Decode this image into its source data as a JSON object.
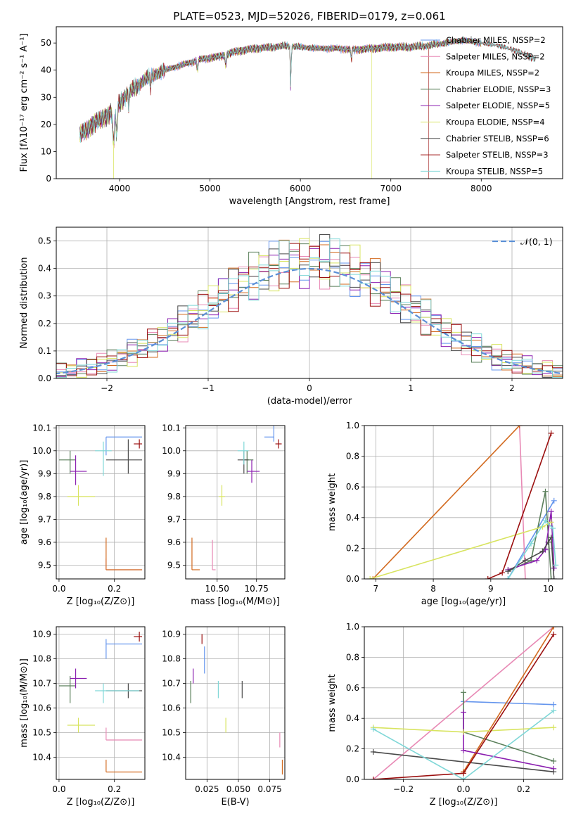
{
  "colors": [
    "#6495ed",
    "#e889b5",
    "#d2691e",
    "#5a7f5a",
    "#8b1fb0",
    "#d8e460",
    "#4a4a4a",
    "#9b0f0f",
    "#7fd7d7"
  ],
  "chart_data": [
    {
      "id": "spectrum",
      "type": "line",
      "title": "PLATE=0523, MJD=52026, FIBERID=0179, z=0.061",
      "xlabel": "wavelength [Angstrom, rest frame]",
      "ylabel": "Flux [fλ10⁻¹⁷ erg cm⁻² s⁻¹ A⁻¹]",
      "xlim": [
        3300,
        8900
      ],
      "ylim": [
        0,
        56
      ],
      "xticks": [
        4000,
        5000,
        6000,
        7000,
        8000
      ],
      "yticks": [
        0,
        10,
        20,
        30,
        40,
        50
      ],
      "legend": [
        "Chabrier MILES, NSSP=2",
        "Salpeter MILES, NSSP=2",
        "Kroupa MILES, NSSP=2",
        "Chabrier ELODIE, NSSP=3",
        "Salpeter ELODIE, NSSP=5",
        "Kroupa ELODIE, NSSP=4",
        "Chabrier STELIB, NSSP=6",
        "Salpeter STELIB, NSSP=3",
        "Kroupa STELIB, NSSP=5"
      ],
      "legend_position": "right",
      "continuum": {
        "x": [
          3560,
          3700,
          3850,
          3950,
          4050,
          4150,
          4300,
          4500,
          4700,
          4900,
          5100,
          5300,
          5500,
          5700,
          5850,
          6000,
          6200,
          6400,
          6600,
          6800,
          7000,
          7200,
          7400,
          7600,
          7800,
          8000,
          8200,
          8400,
          8600
        ],
        "y": [
          16,
          20,
          23,
          26,
          30,
          33,
          37,
          40,
          42,
          44,
          45,
          47,
          48,
          48.5,
          49,
          48.5,
          48,
          48,
          47.5,
          48,
          48.5,
          48.5,
          49,
          50,
          51,
          50,
          49,
          47,
          44
        ]
      },
      "end_x": [
        8000,
        8000,
        8000,
        8000,
        8000,
        8000,
        8600,
        8600,
        8600
      ],
      "drop_x": [
        null,
        null,
        null,
        null,
        null,
        6790,
        null,
        7420,
        null
      ]
    },
    {
      "id": "residuals",
      "type": "histogram",
      "xlabel": "(data-model)/error",
      "ylabel": "Normed distribution",
      "xlim": [
        -2.5,
        2.5
      ],
      "ylim": [
        0,
        0.55
      ],
      "xticks": [
        -2,
        -1,
        0,
        1,
        2
      ],
      "yticks": [
        0.0,
        0.1,
        0.2,
        0.3,
        0.4,
        0.5
      ],
      "legend": [
        "𝒩(0, 1)"
      ],
      "legend_position": "upper right",
      "bin_width": 0.1,
      "reference": {
        "type": "gaussian",
        "mean": 0,
        "sigma": 1
      }
    },
    {
      "id": "age-vs-z",
      "type": "scatter",
      "xlabel": "Z [log₁₀(Z/Z⊙)]",
      "ylabel": "age  [log₁₀(age/yr)]",
      "xlim": [
        -0.01,
        0.31
      ],
      "ylim": [
        9.44,
        10.11
      ],
      "xticks": [
        0.0,
        0.2
      ],
      "yticks": [
        9.5,
        9.6,
        9.7,
        9.8,
        9.9,
        10.0,
        10.1
      ],
      "points": [
        {
          "x": 0.17,
          "xerr": [
            0,
            0.13
          ],
          "y": 10.06,
          "yerr": [
            0.08,
            0.0
          ]
        },
        {
          "x": 0.17,
          "xerr": [
            0,
            0.13
          ],
          "y": 9.48,
          "yerr": [
            0.0,
            0.05
          ]
        },
        {
          "x": 0.17,
          "xerr": [
            0,
            0.13
          ],
          "y": 9.48,
          "yerr": [
            0.0,
            0.14
          ]
        },
        {
          "x": 0.04,
          "xerr": [
            0.04,
            0.02
          ],
          "y": 9.96,
          "yerr": [
            0.06,
            0.04
          ]
        },
        {
          "x": 0.06,
          "xerr": [
            0.02,
            0.04
          ],
          "y": 9.91,
          "yerr": [
            0.06,
            0.07
          ]
        },
        {
          "x": 0.07,
          "xerr": [
            0.04,
            0.06
          ],
          "y": 9.8,
          "yerr": [
            0.04,
            0.05
          ]
        },
        {
          "x": 0.25,
          "xerr": [
            0.08,
            0.05
          ],
          "y": 9.96,
          "yerr": [
            0.06,
            0.09
          ]
        },
        {
          "x": 0.29,
          "xerr": [
            0.02,
            0.01
          ],
          "y": 10.03,
          "yerr": [
            0.02,
            0.02
          ]
        },
        {
          "x": 0.16,
          "xerr": [
            0.03,
            0.03
          ],
          "y": 10.0,
          "yerr": [
            0.11,
            0.04
          ]
        }
      ]
    },
    {
      "id": "age-vs-mass",
      "type": "scatter",
      "xlabel": "mass [log₁₀(M/M⊙)]",
      "ylabel": "",
      "xlim": [
        10.3,
        10.93
      ],
      "ylim": [
        9.44,
        10.11
      ],
      "xticks": [
        10.5,
        10.75
      ],
      "yticks": [
        9.5,
        9.6,
        9.7,
        9.8,
        9.9,
        10.0,
        10.1
      ],
      "points": [
        {
          "x": 10.86,
          "xerr": [
            0.06,
            0.0
          ],
          "y": 10.06,
          "yerr": [
            0.02,
            0.08
          ]
        },
        {
          "x": 10.47,
          "xerr": [
            0.0,
            0.02
          ],
          "y": 9.48,
          "yerr": [
            0.0,
            0.13
          ]
        },
        {
          "x": 10.34,
          "xerr": [
            0.0,
            0.05
          ],
          "y": 9.48,
          "yerr": [
            0.0,
            0.14
          ]
        },
        {
          "x": 10.69,
          "xerr": [
            0.02,
            0.04
          ],
          "y": 9.96,
          "yerr": [
            0.06,
            0.04
          ]
        },
        {
          "x": 10.72,
          "xerr": [
            0.03,
            0.05
          ],
          "y": 9.91,
          "yerr": [
            0.05,
            0.05
          ]
        },
        {
          "x": 10.53,
          "xerr": [
            0.02,
            0.02
          ],
          "y": 9.8,
          "yerr": [
            0.04,
            0.05
          ]
        },
        {
          "x": 10.67,
          "xerr": [
            0.04,
            0.03
          ],
          "y": 9.96,
          "yerr": [
            0.06,
            0.04
          ]
        },
        {
          "x": 10.89,
          "xerr": [
            0.02,
            0.02
          ],
          "y": 10.03,
          "yerr": [
            0.02,
            0.02
          ]
        },
        {
          "x": 10.67,
          "xerr": [
            0.04,
            0.03
          ],
          "y": 10.0,
          "yerr": [
            0.06,
            0.04
          ]
        }
      ]
    },
    {
      "id": "weight-vs-age",
      "type": "line",
      "xlabel": "age  [log₁₀(age/yr)]",
      "ylabel": "mass weight",
      "xlim": [
        6.8,
        10.25
      ],
      "ylim": [
        0,
        1.0
      ],
      "xticks": [
        7,
        8,
        9,
        10
      ],
      "yticks": [
        0.0,
        0.2,
        0.4,
        0.6,
        0.8,
        1.0
      ],
      "series": [
        {
          "x": [
            9.3,
            10.1
          ],
          "y": [
            0.0,
            0.51
          ]
        },
        {
          "x": [
            9.5,
            9.6
          ],
          "y": [
            1.0,
            0.0
          ]
        },
        {
          "x": [
            6.95,
            9.5
          ],
          "y": [
            0.0,
            1.0
          ]
        },
        {
          "x": [
            9.3,
            9.7,
            9.95,
            10.05
          ],
          "y": [
            0.05,
            0.12,
            0.57,
            0.0
          ]
        },
        {
          "x": [
            9.3,
            9.8,
            9.95,
            10.05,
            10.1
          ],
          "y": [
            0.06,
            0.12,
            0.19,
            0.44,
            0.07
          ]
        },
        {
          "x": [
            6.9,
            9.9,
            10.05
          ],
          "y": [
            0.0,
            0.34,
            0.37
          ]
        },
        {
          "x": [
            9.3,
            9.6,
            9.9,
            10.0,
            10.05,
            10.1
          ],
          "y": [
            0.05,
            0.12,
            0.18,
            0.24,
            0.27,
            0.0
          ]
        },
        {
          "x": [
            8.95,
            9.2,
            10.05
          ],
          "y": [
            0.0,
            0.04,
            0.95
          ]
        },
        {
          "x": [
            9.3,
            9.7,
            9.95,
            10.08,
            10.13
          ],
          "y": [
            0.0,
            0.23,
            0.38,
            0.33,
            0.09
          ]
        }
      ]
    },
    {
      "id": "mass-vs-z",
      "type": "scatter",
      "xlabel": "Z [log₁₀(Z/Z⊙)]",
      "ylabel": "mass [log₁₀(M/M⊙)]",
      "xlim": [
        -0.01,
        0.31
      ],
      "ylim": [
        10.31,
        10.93
      ],
      "xticks": [
        0.0,
        0.2
      ],
      "yticks": [
        10.4,
        10.5,
        10.6,
        10.7,
        10.8,
        10.9
      ],
      "points": [
        {
          "x": 0.17,
          "xerr": [
            0,
            0.13
          ],
          "y": 10.86,
          "yerr": [
            0.06,
            0.02
          ]
        },
        {
          "x": 0.17,
          "xerr": [
            0,
            0.13
          ],
          "y": 10.47,
          "yerr": [
            0.0,
            0.05
          ]
        },
        {
          "x": 0.17,
          "xerr": [
            0,
            0.13
          ],
          "y": 10.34,
          "yerr": [
            0.0,
            0.05
          ]
        },
        {
          "x": 0.04,
          "xerr": [
            0.04,
            0.02
          ],
          "y": 10.69,
          "yerr": [
            0.07,
            0.04
          ]
        },
        {
          "x": 0.06,
          "xerr": [
            0.02,
            0.04
          ],
          "y": 10.72,
          "yerr": [
            0.04,
            0.04
          ]
        },
        {
          "x": 0.07,
          "xerr": [
            0.04,
            0.06
          ],
          "y": 10.53,
          "yerr": [
            0.03,
            0.03
          ]
        },
        {
          "x": 0.25,
          "xerr": [
            0.08,
            0.05
          ],
          "y": 10.67,
          "yerr": [
            0.03,
            0.03
          ]
        },
        {
          "x": 0.29,
          "xerr": [
            0.02,
            0.01
          ],
          "y": 10.89,
          "yerr": [
            0.02,
            0.02
          ]
        },
        {
          "x": 0.16,
          "xerr": [
            0.03,
            0.13
          ],
          "y": 10.67,
          "yerr": [
            0.05,
            0.03
          ]
        }
      ]
    },
    {
      "id": "mass-vs-ebv",
      "type": "scatter",
      "xlabel": "E(B-V)",
      "ylabel": "",
      "xlim": [
        0.008,
        0.087
      ],
      "ylim": [
        10.31,
        10.93
      ],
      "xticks": [
        0.025,
        0.05,
        0.075
      ],
      "xtick_labels": [
        "0.025",
        "0.050",
        "0.075"
      ],
      "yticks": [
        10.4,
        10.5,
        10.6,
        10.7,
        10.8,
        10.9
      ],
      "points": [
        {
          "x": 0.023,
          "xerr": [
            0,
            0
          ],
          "y": 10.79,
          "yerr": [
            0.05,
            0.06
          ]
        },
        {
          "x": 0.083,
          "xerr": [
            0,
            0
          ],
          "y": 10.47,
          "yerr": [
            0.03,
            0.03
          ]
        },
        {
          "x": 0.085,
          "xerr": [
            0,
            0
          ],
          "y": 10.36,
          "yerr": [
            0.03,
            0.03
          ]
        },
        {
          "x": 0.012,
          "xerr": [
            0,
            0
          ],
          "y": 10.67,
          "yerr": [
            0.05,
            0.04
          ]
        },
        {
          "x": 0.014,
          "xerr": [
            0,
            0
          ],
          "y": 10.73,
          "yerr": [
            0.03,
            0.03
          ]
        },
        {
          "x": 0.04,
          "xerr": [
            0,
            0
          ],
          "y": 10.53,
          "yerr": [
            0.03,
            0.03
          ]
        },
        {
          "x": 0.053,
          "xerr": [
            0,
            0
          ],
          "y": 10.67,
          "yerr": [
            0.03,
            0.04
          ]
        },
        {
          "x": 0.021,
          "xerr": [
            0,
            0
          ],
          "y": 10.88,
          "yerr": [
            0.02,
            0.02
          ]
        },
        {
          "x": 0.034,
          "xerr": [
            0,
            0
          ],
          "y": 10.67,
          "yerr": [
            0.03,
            0.04
          ]
        }
      ]
    },
    {
      "id": "weight-vs-z",
      "type": "line",
      "xlabel": "Z [log₁₀(Z/Z⊙)]",
      "ylabel": "mass weight",
      "xlim": [
        -0.33,
        0.33
      ],
      "ylim": [
        0,
        1.0
      ],
      "xticks": [
        -0.2,
        0.0,
        0.2
      ],
      "yticks": [
        0.0,
        0.2,
        0.4,
        0.6,
        0.8,
        1.0
      ],
      "series": [
        {
          "x": [
            0.0,
            0.3
          ],
          "y": [
            0.51,
            0.49
          ]
        },
        {
          "x": [
            -0.3,
            0.3
          ],
          "y": [
            0.0,
            1.0
          ]
        },
        {
          "x": [
            0.0,
            0.3
          ],
          "y": [
            0.05,
            1.0
          ]
        },
        {
          "x": [
            0.0,
            0.0,
            0.3
          ],
          "y": [
            0.57,
            0.31,
            0.12
          ]
        },
        {
          "x": [
            0.0,
            0.0,
            0.3
          ],
          "y": [
            0.44,
            0.19,
            0.07
          ]
        },
        {
          "x": [
            -0.3,
            0.0,
            0.3
          ],
          "y": [
            0.34,
            0.31,
            0.34
          ]
        },
        {
          "x": [
            -0.3,
            0.3
          ],
          "y": [
            0.18,
            0.05
          ]
        },
        {
          "x": [
            -0.3,
            0.0,
            0.3
          ],
          "y": [
            0.0,
            0.04,
            0.95
          ]
        },
        {
          "x": [
            -0.3,
            0.0,
            0.3
          ],
          "y": [
            0.33,
            0.0,
            0.45
          ]
        }
      ]
    }
  ]
}
